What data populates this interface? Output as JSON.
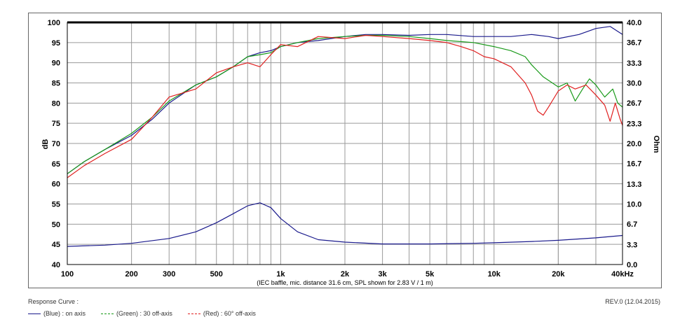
{
  "chart_data": {
    "type": "line",
    "x_scale": "log",
    "xlim": [
      100,
      40000
    ],
    "x_ticks": [
      100,
      200,
      300,
      500,
      1000,
      2000,
      3000,
      5000,
      10000,
      20000,
      40000
    ],
    "x_tick_labels": [
      "100",
      "200",
      "300",
      "500",
      "1k",
      "2k",
      "3k",
      "5k",
      "10k",
      "20k",
      "40kHz"
    ],
    "ylim": [
      40,
      100
    ],
    "y_ticks": [
      40,
      45,
      50,
      55,
      60,
      65,
      70,
      75,
      80,
      85,
      90,
      95,
      100
    ],
    "y_tick_labels": [
      "40",
      "45",
      "50",
      "55",
      "60",
      "65",
      "70",
      "75",
      "80",
      "85",
      "90",
      "95",
      "100"
    ],
    "ylabel": "dB",
    "y2lim": [
      0,
      40
    ],
    "y2_ticks": [
      0,
      3.3,
      6.7,
      10,
      13.3,
      16.7,
      20,
      23.3,
      26.7,
      30,
      33.3,
      36.7,
      40
    ],
    "y2_tick_labels": [
      "0.0",
      "3.3",
      "6.7",
      "10.0",
      "13.3",
      "16.7",
      "20.0",
      "23.3",
      "26.7",
      "30.0",
      "33.3",
      "36.7",
      "40.0"
    ],
    "y2label": "Ohm",
    "xlabel": "(IEC baffle, mic. distance 31.6 cm, SPL shown for 2.83 V / 1 m)",
    "grid": true,
    "series": [
      {
        "name": "(Blue) : on axis",
        "color": "#1a1a8c",
        "axis": "left",
        "x": [
          100,
          120,
          150,
          200,
          250,
          300,
          400,
          500,
          600,
          700,
          800,
          900,
          1000,
          1200,
          1500,
          2000,
          2500,
          3000,
          4000,
          5000,
          6000,
          8000,
          10000,
          12000,
          15000,
          18000,
          20000,
          25000,
          30000,
          35000,
          40000
        ],
        "values": [
          62.5,
          65.5,
          68.5,
          72,
          76,
          80,
          84.5,
          86.5,
          89,
          91.5,
          92.5,
          93,
          94,
          95,
          95.5,
          96.5,
          97,
          97,
          96.8,
          97,
          97,
          96.5,
          96.5,
          96.5,
          97,
          96.5,
          96,
          97,
          98.5,
          99,
          97
        ]
      },
      {
        "name": "(Green) : 30 off-axis",
        "color": "#1a9a1a",
        "axis": "left",
        "x": [
          100,
          120,
          150,
          200,
          250,
          300,
          400,
          500,
          600,
          700,
          800,
          900,
          1000,
          1200,
          1500,
          2000,
          2500,
          3000,
          4000,
          5000,
          6000,
          8000,
          10000,
          12000,
          14000,
          15000,
          17000,
          20000,
          22000,
          24000,
          26000,
          28000,
          30000,
          33000,
          36000,
          38000,
          40000
        ],
        "values": [
          62.5,
          65.5,
          68.5,
          72.5,
          76.5,
          80.5,
          84.5,
          86.5,
          89,
          91.5,
          92,
          92.5,
          94,
          95,
          96,
          96.5,
          96.8,
          96.8,
          96.5,
          96,
          95.5,
          95,
          94,
          93,
          91.5,
          89.5,
          86.5,
          84,
          85,
          80.5,
          83.5,
          86,
          84.5,
          81.5,
          83.5,
          80,
          79
        ]
      },
      {
        "name": "(Red) : 60° off-axis",
        "color": "#e02020",
        "axis": "left",
        "x": [
          100,
          120,
          150,
          200,
          250,
          300,
          400,
          500,
          600,
          700,
          800,
          900,
          1000,
          1200,
          1500,
          2000,
          2500,
          3000,
          4000,
          5000,
          6000,
          7000,
          8000,
          9000,
          10000,
          12000,
          14000,
          15000,
          16000,
          17000,
          18000,
          20000,
          22000,
          24000,
          27000,
          30000,
          33000,
          35000,
          37000,
          39000,
          40000
        ],
        "values": [
          61.5,
          64.5,
          67.5,
          71,
          76.5,
          81.5,
          83.5,
          87.5,
          89,
          90,
          89,
          92,
          94.5,
          94,
          96.5,
          96,
          96.8,
          96.5,
          96,
          95.5,
          95,
          94,
          93,
          91.5,
          91,
          89,
          85,
          82,
          78,
          77,
          79,
          83,
          84.5,
          83.5,
          84.5,
          82,
          79.5,
          75.5,
          80,
          76,
          74.5
        ]
      },
      {
        "name": "Impedance",
        "color": "#1a1a8c",
        "axis": "right",
        "x": [
          100,
          150,
          200,
          300,
          400,
          500,
          600,
          700,
          800,
          900,
          1000,
          1200,
          1500,
          2000,
          3000,
          5000,
          8000,
          10000,
          15000,
          20000,
          30000,
          40000
        ],
        "values": [
          3.0,
          3.2,
          3.5,
          4.3,
          5.4,
          6.9,
          8.4,
          9.7,
          10.2,
          9.4,
          7.6,
          5.4,
          4.1,
          3.7,
          3.4,
          3.4,
          3.5,
          3.6,
          3.8,
          4.0,
          4.4,
          4.8
        ]
      }
    ]
  },
  "legend_title": "Response Curve :",
  "legend": [
    {
      "label": "(Blue)  : on axis",
      "color": "#1a1a8c",
      "style": "solid"
    },
    {
      "label": "(Green) : 30 off-axis",
      "color": "#1a9a1a",
      "style": "dashed"
    },
    {
      "label": "(Red) : 60° off-axis",
      "color": "#e02020",
      "style": "dashed"
    }
  ],
  "revision": "REV.0 (12.04.2015)"
}
